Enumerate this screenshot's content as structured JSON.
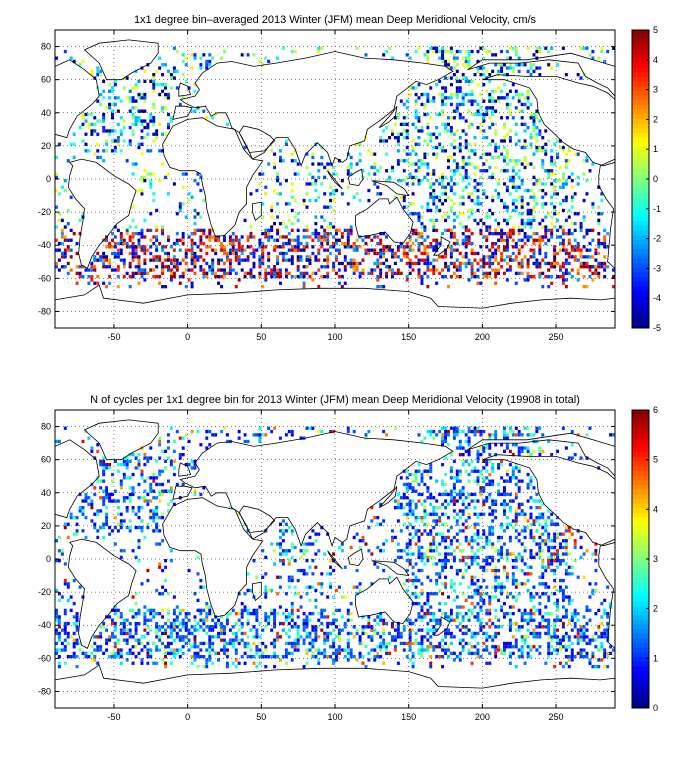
{
  "chart_data": [
    {
      "type": "heatmap",
      "title": "1x1 degree bin–averaged 2013 Winter (JFM) mean Deep Meridional Velocity, cm/s",
      "xlabel": "",
      "ylabel": "",
      "xlim": [
        -90,
        290
      ],
      "ylim": [
        -90,
        90
      ],
      "x_ticks": [
        -50,
        0,
        50,
        100,
        150,
        200,
        250
      ],
      "y_ticks": [
        -80,
        -60,
        -40,
        -20,
        0,
        20,
        40,
        60,
        80
      ],
      "grid": true,
      "colorbar": {
        "colormap": "jet",
        "range": [
          -5,
          5
        ],
        "ticks": [
          -5,
          -4,
          -3,
          -2,
          -1,
          0,
          1,
          2,
          3,
          4,
          5
        ]
      },
      "bin_size_deg": 1
    },
    {
      "type": "heatmap",
      "title": "N of cycles per 1x1 degree bin for 2013 Winter (JFM) mean Deep Meridional Velocity (19908 in total)",
      "xlabel": "",
      "ylabel": "",
      "xlim": [
        -90,
        290
      ],
      "ylim": [
        -90,
        90
      ],
      "x_ticks": [
        -50,
        0,
        50,
        100,
        150,
        200,
        250
      ],
      "y_ticks": [
        -80,
        -60,
        -40,
        -20,
        0,
        20,
        40,
        60,
        80
      ],
      "grid": true,
      "colorbar": {
        "colormap": "jet",
        "range": [
          0,
          6
        ],
        "ticks": [
          0,
          1,
          2,
          3,
          4,
          5,
          6
        ]
      },
      "bin_size_deg": 1
    }
  ]
}
